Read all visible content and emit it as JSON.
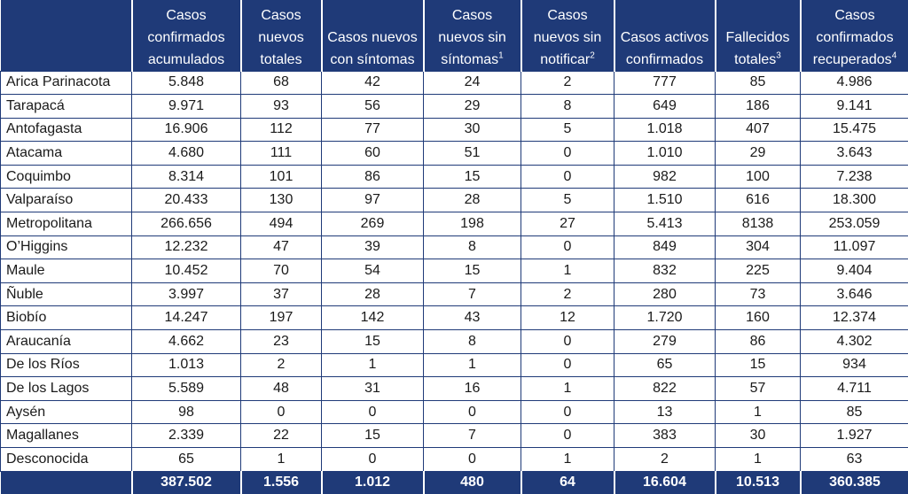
{
  "headers": [
    {
      "label": ""
    },
    {
      "label": "Casos confirmados acumulados"
    },
    {
      "label": "Casos nuevos totales"
    },
    {
      "label": "Casos nuevos con síntomas"
    },
    {
      "label": "Casos nuevos sin síntomas",
      "sup": "1"
    },
    {
      "label": "Casos nuevos sin notificar",
      "sup": "2"
    },
    {
      "label": "Casos activos confirmados"
    },
    {
      "label": "Fallecidos totales",
      "sup": "3"
    },
    {
      "label": "Casos confirmados recuperados",
      "sup": "4"
    }
  ],
  "rows": [
    [
      "Arica Parinacota",
      "5.848",
      "68",
      "42",
      "24",
      "2",
      "777",
      "85",
      "4.986"
    ],
    [
      "Tarapacá",
      "9.971",
      "93",
      "56",
      "29",
      "8",
      "649",
      "186",
      "9.141"
    ],
    [
      "Antofagasta",
      "16.906",
      "112",
      "77",
      "30",
      "5",
      "1.018",
      "407",
      "15.475"
    ],
    [
      "Atacama",
      "4.680",
      "111",
      "60",
      "51",
      "0",
      "1.010",
      "29",
      "3.643"
    ],
    [
      "Coquimbo",
      "8.314",
      "101",
      "86",
      "15",
      "0",
      "982",
      "100",
      "7.238"
    ],
    [
      "Valparaíso",
      "20.433",
      "130",
      "97",
      "28",
      "5",
      "1.510",
      "616",
      "18.300"
    ],
    [
      "Metropolitana",
      "266.656",
      "494",
      "269",
      "198",
      "27",
      "5.413",
      "8138",
      "253.059"
    ],
    [
      "O’Higgins",
      "12.232",
      "47",
      "39",
      "8",
      "0",
      "849",
      "304",
      "11.097"
    ],
    [
      "Maule",
      "10.452",
      "70",
      "54",
      "15",
      "1",
      "832",
      "225",
      "9.404"
    ],
    [
      "Ñuble",
      "3.997",
      "37",
      "28",
      "7",
      "2",
      "280",
      "73",
      "3.646"
    ],
    [
      "Biobío",
      "14.247",
      "197",
      "142",
      "43",
      "12",
      "1.720",
      "160",
      "12.374"
    ],
    [
      "Araucanía",
      "4.662",
      "23",
      "15",
      "8",
      "0",
      "279",
      "86",
      "4.302"
    ],
    [
      "De los Ríos",
      "1.013",
      "2",
      "1",
      "1",
      "0",
      "65",
      "15",
      "934"
    ],
    [
      "De los Lagos",
      "5.589",
      "48",
      "31",
      "16",
      "1",
      "822",
      "57",
      "4.711"
    ],
    [
      "Aysén",
      "98",
      "0",
      "0",
      "0",
      "0",
      "13",
      "1",
      "85"
    ],
    [
      "Magallanes",
      "2.339",
      "22",
      "15",
      "7",
      "0",
      "383",
      "30",
      "1.927"
    ],
    [
      "Desconocida",
      "65",
      "1",
      "0",
      "0",
      "1",
      "2",
      "1",
      "63"
    ]
  ],
  "totals": [
    "",
    "387.502",
    "1.556",
    "1.012",
    "480",
    "64",
    "16.604",
    "10.513",
    "360.385"
  ],
  "colors": {
    "header_bg": "#1f3a78",
    "header_text": "#ffffff",
    "border": "#1f3a78"
  }
}
